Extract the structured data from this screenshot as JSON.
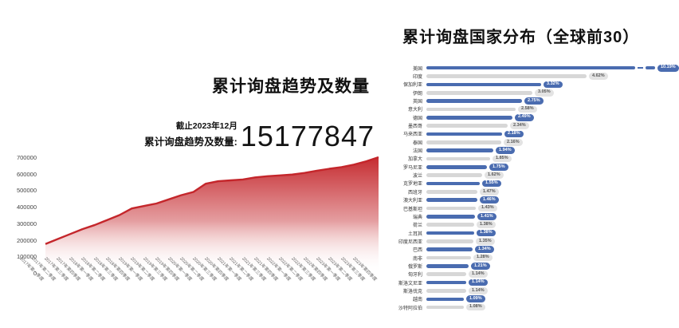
{
  "left_chart": {
    "title": "累计询盘趋势及数量",
    "asof": "截止2023年12月",
    "total_label": "累计询盘趋势及数量:",
    "total_value": "15177847"
  },
  "right_chart": {
    "title": "累计询盘国家分布（全球前30）"
  },
  "colors": {
    "area_red": "#c4262b",
    "bar_blue": "#4a6cb0",
    "bar_gray": "#d7d7d7",
    "badge_blue_bg": "#4a6cb0",
    "badge_blue_text": "#ffffff",
    "badge_gray_bg": "#e3e3e3",
    "badge_gray_text": "#555555",
    "axis_text": "#444444"
  },
  "chart_data": [
    {
      "type": "area",
      "title": "累计询盘趋势及数量",
      "annotation": "截止2023年12月 累计询盘趋势及数量: 15177847",
      "x": [
        "2017年第一季度",
        "2017年第二季度",
        "2017年第三季度",
        "2017年第四季度",
        "2018年第一季度",
        "2018年第二季度",
        "2018年第三季度",
        "2018年第四季度",
        "2019年第一季度",
        "2019年第二季度",
        "2019年第三季度",
        "2019年第四季度",
        "2020年第一季度",
        "2020年第二季度",
        "2020年第三季度",
        "2020年第四季度",
        "2021年第一季度",
        "2021年第二季度",
        "2021年第三季度",
        "2021年第四季度",
        "2022年第一季度",
        "2022年第二季度",
        "2022年第三季度",
        "2022年第四季度",
        "2023年第一季度",
        "2023年第二季度",
        "2023年第三季度",
        "2023年第四季度"
      ],
      "values": [
        175000,
        205000,
        235000,
        265000,
        290000,
        320000,
        350000,
        390000,
        405000,
        420000,
        445000,
        470000,
        490000,
        540000,
        555000,
        560000,
        565000,
        578000,
        585000,
        590000,
        595000,
        605000,
        618000,
        630000,
        640000,
        655000,
        675000,
        700000
      ],
      "ylim": [
        0,
        700000
      ],
      "yticks": [
        0,
        100000,
        200000,
        300000,
        400000,
        500000,
        600000,
        700000
      ],
      "grid": false,
      "legend": "none"
    },
    {
      "type": "bar",
      "orientation": "horizontal",
      "title": "累计询盘国家分布（全球前30）",
      "unit": "%",
      "axis_break_on_first_bar": true,
      "categories": [
        "美国",
        "印度",
        "保加利亚",
        "伊朗",
        "英国",
        "意大利",
        "德国",
        "墨西哥",
        "马来西亚",
        "泰国",
        "法国",
        "加拿大",
        "罗马尼亚",
        "波兰",
        "克罗地亚",
        "西班牙",
        "澳大利亚",
        "巴基斯坦",
        "瑞典",
        "荷兰",
        "土耳其",
        "印度尼西亚",
        "巴西",
        "南非",
        "俄罗斯",
        "匈牙利",
        "斯洛文尼亚",
        "斯洛伐克",
        "越南",
        "沙特阿拉伯"
      ],
      "values": [
        10.19,
        4.62,
        3.32,
        3.05,
        2.75,
        2.58,
        2.49,
        2.34,
        2.18,
        2.16,
        1.94,
        1.85,
        1.75,
        1.62,
        1.55,
        1.47,
        1.46,
        1.43,
        1.41,
        1.38,
        1.38,
        1.35,
        1.34,
        1.28,
        1.21,
        1.14,
        1.14,
        1.14,
        1.09,
        1.08
      ]
    }
  ]
}
